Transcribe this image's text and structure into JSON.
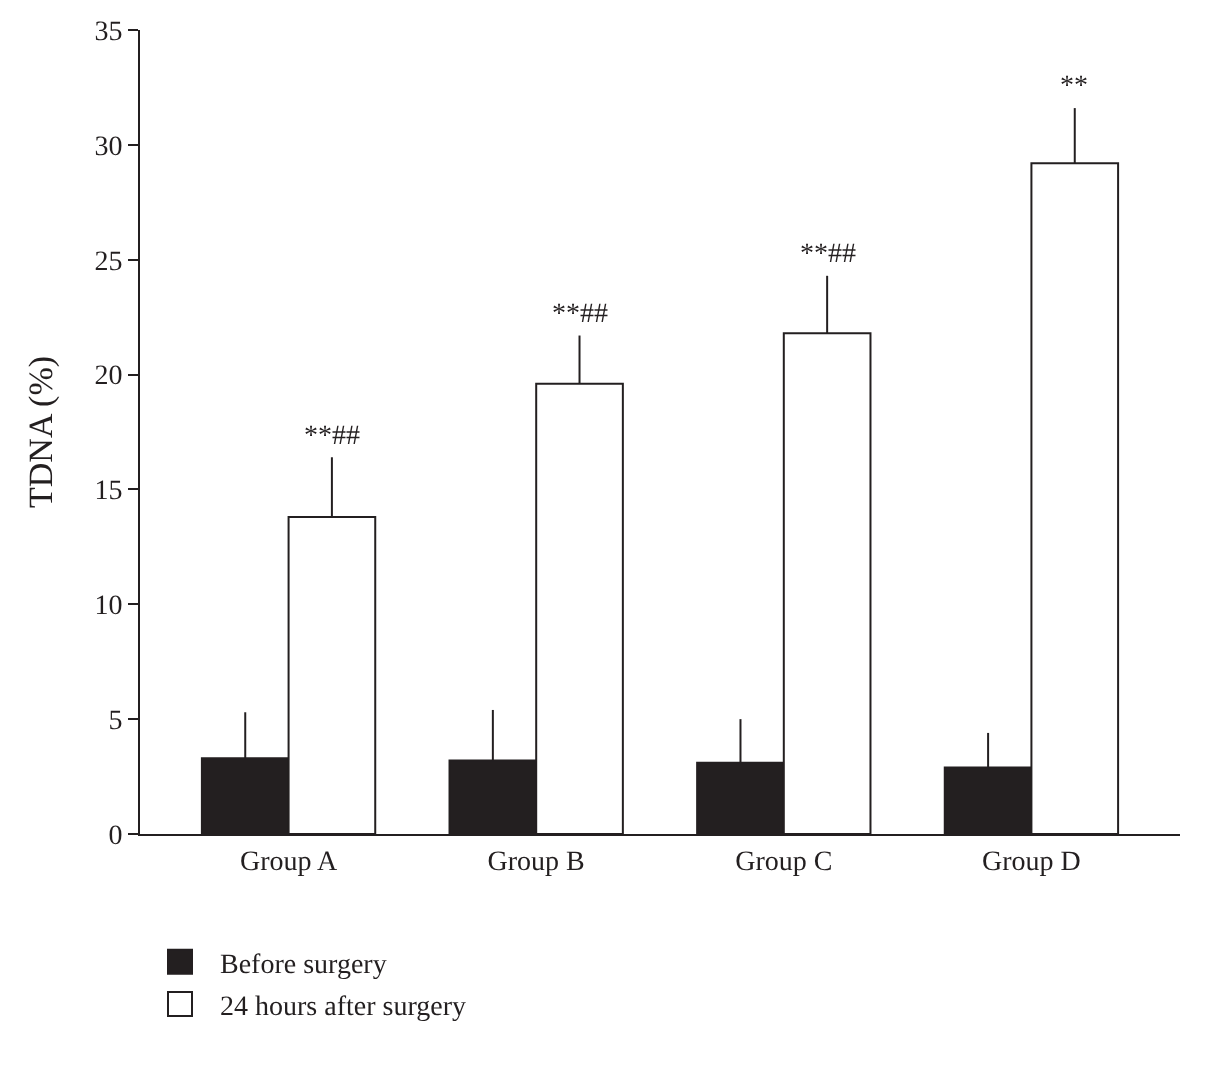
{
  "chart_data": {
    "type": "bar",
    "ylabel": "TDNA (%)",
    "categories": [
      "Group A",
      "Group B",
      "Group C",
      "Group D"
    ],
    "series": [
      {
        "name": "Before surgery",
        "color": "#231f20",
        "values": [
          3.3,
          3.2,
          3.1,
          2.9
        ],
        "errors": [
          [
            3.3,
            5.3
          ],
          [
            3.2,
            5.4
          ],
          [
            3.1,
            5.0
          ],
          [
            2.9,
            4.4
          ]
        ]
      },
      {
        "name": "24 hours after surgery",
        "color": "#ffffff",
        "values": [
          13.8,
          19.6,
          21.8,
          29.2
        ],
        "errors": [
          [
            13.8,
            16.4
          ],
          [
            19.6,
            21.7
          ],
          [
            21.8,
            24.3
          ],
          [
            29.2,
            31.6
          ]
        ]
      }
    ],
    "annotations": [
      {
        "text": "**##",
        "x": "Group A",
        "y": 13.8
      },
      {
        "text": "**##",
        "x": "Group B",
        "y": 19.6
      },
      {
        "text": "**##",
        "x": "Group C",
        "y": 21.8
      },
      {
        "text": "**",
        "x": "Group D",
        "y": 29.2
      }
    ],
    "ylim": [
      0,
      35
    ],
    "yticks": [
      0,
      5,
      10,
      15,
      20,
      25,
      30,
      35
    ],
    "grid": false,
    "legend": "bottom"
  }
}
